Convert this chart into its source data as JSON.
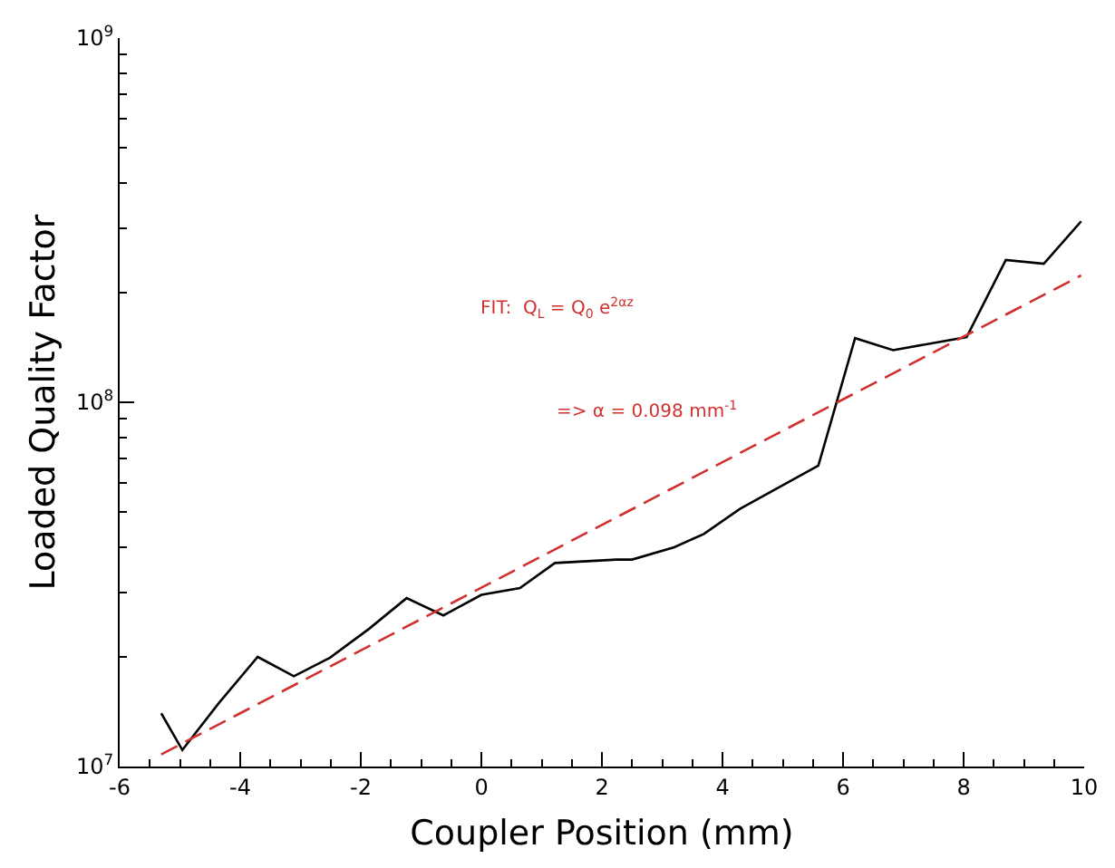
{
  "chart_data": {
    "type": "line",
    "xlabel": "Coupler Position (mm)",
    "ylabel": "Loaded Quality Factor",
    "x": [
      -5.31,
      -4.96,
      -4.36,
      -3.71,
      -3.11,
      -2.51,
      -1.86,
      -1.24,
      -0.63,
      0.0,
      0.64,
      1.22,
      2.24,
      2.5,
      3.2,
      3.69,
      4.29,
      5.59,
      6.2,
      6.83,
      8.05,
      8.7,
      9.33,
      9.95
    ],
    "series": [
      {
        "color": "#000000",
        "line_style": "solid",
        "values": [
          14000000,
          11100000,
          14900000,
          20000000,
          17700000,
          19900000,
          23900000,
          29000000,
          26000000,
          29600000,
          30900000,
          36200000,
          37000000,
          37000000,
          40000000,
          43500000,
          51000000,
          67000000,
          150000000,
          139000000,
          151000000,
          246000000,
          240000000,
          314000000
        ]
      },
      {
        "type": "line",
        "color": "#d03030",
        "line_style": "dashed",
        "x": [
          -5.31,
          9.95
        ],
        "values": [
          10800000,
          223000000
        ]
      }
    ],
    "log": "y",
    "marker": "none",
    "grid": false,
    "xlim": [
      -6,
      10
    ],
    "xticks": [
      -6,
      -4,
      -2,
      0,
      2,
      4,
      6,
      8,
      10
    ],
    "ylim": [
      10000000,
      1000000000
    ],
    "yticks": [
      {
        "value": 10000000,
        "label": "10$^{7}$"
      },
      {
        "value": 100000000,
        "label": "10$^{8}$"
      },
      {
        "value": 1000000000,
        "label": "10$^{9}$"
      }
    ],
    "annotations": [
      "FIT:  Q$_{L}$ = Q$_{0}$ e$^{2αz}$",
      "=> α = 0.098 mm$^{-1}$"
    ]
  }
}
